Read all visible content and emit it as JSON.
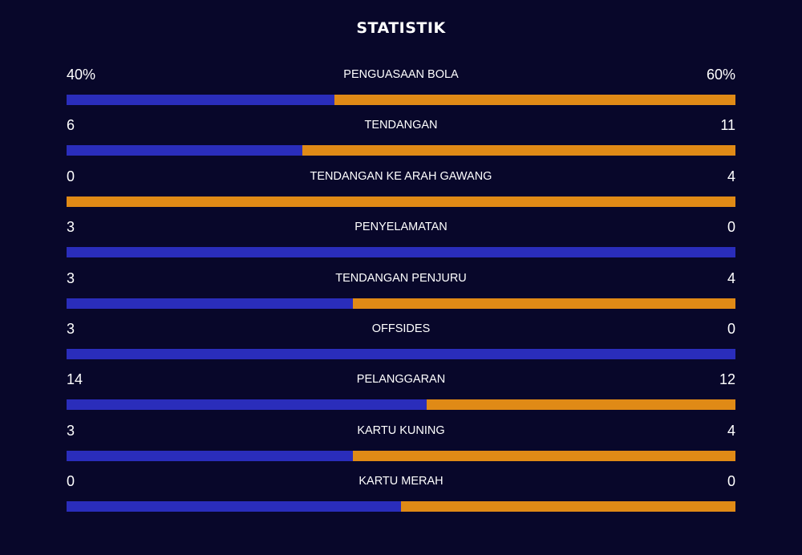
{
  "title": "STATISTIK",
  "colors": {
    "background": "#08072a",
    "home": "#2a2dbb",
    "away": "#e08a16",
    "text": "#ffffff"
  },
  "stats": [
    {
      "label": "PENGUASAAN BOLA",
      "home": "40%",
      "away": "60%",
      "home_share": 0.4
    },
    {
      "label": "TENDANGAN",
      "home": "6",
      "away": "11",
      "home_share": 0.353
    },
    {
      "label": "TENDANGAN KE ARAH GAWANG",
      "home": "0",
      "away": "4",
      "home_share": 0.0
    },
    {
      "label": "PENYELAMATAN",
      "home": "3",
      "away": "0",
      "home_share": 1.0
    },
    {
      "label": "TENDANGAN PENJURU",
      "home": "3",
      "away": "4",
      "home_share": 0.4286
    },
    {
      "label": "OFFSIDES",
      "home": "3",
      "away": "0",
      "home_share": 1.0
    },
    {
      "label": "PELANGGARAN",
      "home": "14",
      "away": "12",
      "home_share": 0.5385
    },
    {
      "label": "KARTU KUNING",
      "home": "3",
      "away": "4",
      "home_share": 0.4286
    },
    {
      "label": "KARTU MERAH",
      "home": "0",
      "away": "0",
      "home_share": 0.5
    }
  ]
}
